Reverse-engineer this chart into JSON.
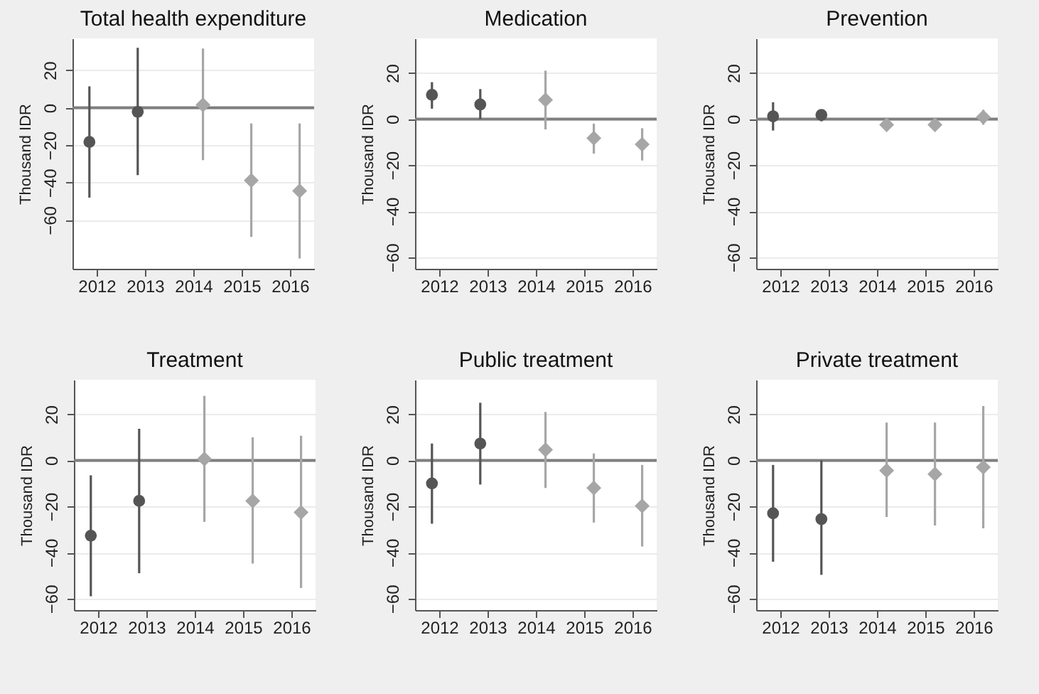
{
  "chart_data": [
    {
      "type": "scatter",
      "title": "Total health expenditure",
      "ylabel": "Thousand IDR",
      "xlim": [
        2011.5,
        2016.5
      ],
      "xticks": [
        2012,
        2013,
        2014,
        2015,
        2016
      ],
      "ylim": [
        -86,
        37
      ],
      "yticks": [
        20,
        0,
        -20,
        -40,
        -60
      ],
      "grid": "y",
      "ref_lines": [
        {
          "axis": "y",
          "value": 0,
          "color": "#7f7f7f"
        }
      ],
      "series": [
        {
          "color": "#555555",
          "marker": "circle",
          "x": [
            2011.85,
            2012.85
          ],
          "values": [
            -18.3,
            -2.2
          ],
          "errors": [
            [
              -48,
              11.4
            ],
            [
              -36,
              32
            ]
          ]
        },
        {
          "color": "#a6a6a6",
          "marker": "diamond",
          "x": [
            2014.2,
            2015.2,
            2016.2
          ],
          "values": [
            1.5,
            -38.8,
            -44.4
          ],
          "errors": [
            [
              -28,
              31.6
            ],
            [
              -69,
              -8.4
            ],
            [
              -80.5,
              -8.4
            ]
          ]
        }
      ]
    },
    {
      "type": "scatter",
      "title": "Medication",
      "ylabel": "Thousand IDR",
      "xlim": [
        2011.5,
        2016.5
      ],
      "xticks": [
        2012,
        2013,
        2014,
        2015,
        2016
      ],
      "ylim": [
        -65,
        35
      ],
      "yticks": [
        20,
        0,
        -20,
        -40,
        -60
      ],
      "grid": "y",
      "ref_lines": [
        {
          "axis": "y",
          "value": 0,
          "color": "#7f7f7f"
        }
      ],
      "series": [
        {
          "color": "#555555",
          "marker": "circle",
          "x": [
            2011.85,
            2012.85
          ],
          "values": [
            10.5,
            6.3
          ],
          "errors": [
            [
              4.5,
              16
            ],
            [
              0,
              13
            ]
          ]
        },
        {
          "color": "#a6a6a6",
          "marker": "diamond",
          "x": [
            2014.2,
            2015.2,
            2016.2
          ],
          "values": [
            8.3,
            -8.3,
            -11
          ],
          "errors": [
            [
              -4.5,
              21
            ],
            [
              -15,
              -2
            ],
            [
              -18,
              -4
            ]
          ]
        }
      ]
    },
    {
      "type": "scatter",
      "title": "Prevention",
      "ylabel": "Thousand IDR",
      "xlim": [
        2011.5,
        2016.5
      ],
      "xticks": [
        2012,
        2013,
        2014,
        2015,
        2016
      ],
      "ylim": [
        -65,
        35
      ],
      "yticks": [
        20,
        0,
        -20,
        -40,
        -60
      ],
      "grid": "y",
      "ref_lines": [
        {
          "axis": "y",
          "value": 0,
          "color": "#7f7f7f"
        }
      ],
      "series": [
        {
          "color": "#555555",
          "marker": "circle",
          "x": [
            2011.85,
            2012.85
          ],
          "values": [
            1.2,
            1.8
          ],
          "errors": [
            [
              -5,
              7.3
            ],
            [
              -1,
              4
            ]
          ]
        },
        {
          "color": "#a6a6a6",
          "marker": "diamond",
          "x": [
            2014.2,
            2015.2,
            2016.2
          ],
          "values": [
            -2.5,
            -2.5,
            0.8
          ],
          "errors": [
            [
              -4,
              -1
            ],
            [
              -5,
              0
            ],
            [
              -2.5,
              4
            ]
          ]
        }
      ]
    },
    {
      "type": "scatter",
      "title": "Treatment",
      "ylabel": "Thousand IDR",
      "xlim": [
        2011.5,
        2016.5
      ],
      "xticks": [
        2012,
        2013,
        2014,
        2015,
        2016
      ],
      "ylim": [
        -65,
        35
      ],
      "yticks": [
        20,
        0,
        -20,
        -40,
        -60
      ],
      "grid": "y",
      "ref_lines": [
        {
          "axis": "y",
          "value": 0,
          "color": "#7f7f7f"
        }
      ],
      "series": [
        {
          "color": "#555555",
          "marker": "circle",
          "x": [
            2011.85,
            2012.85
          ],
          "values": [
            -32.7,
            -17.6
          ],
          "errors": [
            [
              -59,
              -6.5
            ],
            [
              -49,
              13.7
            ]
          ]
        },
        {
          "color": "#a6a6a6",
          "marker": "diamond",
          "x": [
            2014.2,
            2015.2,
            2016.2
          ],
          "values": [
            0.6,
            -17.6,
            -22.6
          ],
          "errors": [
            [
              -26.7,
              28
            ],
            [
              -44.8,
              10
            ],
            [
              -55.4,
              10.7
            ]
          ]
        }
      ]
    },
    {
      "type": "scatter",
      "title": "Public treatment",
      "ylabel": "Thousand IDR",
      "xlim": [
        2011.5,
        2016.5
      ],
      "xticks": [
        2012,
        2013,
        2014,
        2015,
        2016
      ],
      "ylim": [
        -65,
        35
      ],
      "yticks": [
        20,
        0,
        -20,
        -40,
        -60
      ],
      "grid": "y",
      "ref_lines": [
        {
          "axis": "y",
          "value": 0,
          "color": "#7f7f7f"
        }
      ],
      "series": [
        {
          "color": "#555555",
          "marker": "circle",
          "x": [
            2011.85,
            2012.85
          ],
          "values": [
            -10,
            7.3
          ],
          "errors": [
            [
              -27.5,
              7.3
            ],
            [
              -10.5,
              25
            ]
          ]
        },
        {
          "color": "#a6a6a6",
          "marker": "diamond",
          "x": [
            2014.2,
            2015.2,
            2016.2
          ],
          "values": [
            4.6,
            -12,
            -19.8
          ],
          "errors": [
            [
              -12,
              21
            ],
            [
              -27,
              3
            ],
            [
              -37.4,
              -2
            ]
          ]
        }
      ]
    },
    {
      "type": "scatter",
      "title": "Private treatment",
      "ylabel": "Thousand IDR",
      "xlim": [
        2011.5,
        2016.5
      ],
      "xticks": [
        2012,
        2013,
        2014,
        2015,
        2016
      ],
      "ylim": [
        -65,
        35
      ],
      "yticks": [
        20,
        0,
        -20,
        -40,
        -60
      ],
      "grid": "y",
      "ref_lines": [
        {
          "axis": "y",
          "value": 0,
          "color": "#7f7f7f"
        }
      ],
      "series": [
        {
          "color": "#555555",
          "marker": "circle",
          "x": [
            2011.85,
            2012.85
          ],
          "values": [
            -23,
            -25.5
          ],
          "errors": [
            [
              -44,
              -2
            ],
            [
              -49.7,
              0
            ]
          ]
        },
        {
          "color": "#a6a6a6",
          "marker": "diamond",
          "x": [
            2014.2,
            2015.2,
            2016.2
          ],
          "values": [
            -4.4,
            -6,
            -3
          ],
          "errors": [
            [
              -24.6,
              16.4
            ],
            [
              -28.3,
              16.4
            ],
            [
              -29.5,
              23.6
            ]
          ]
        }
      ]
    }
  ]
}
